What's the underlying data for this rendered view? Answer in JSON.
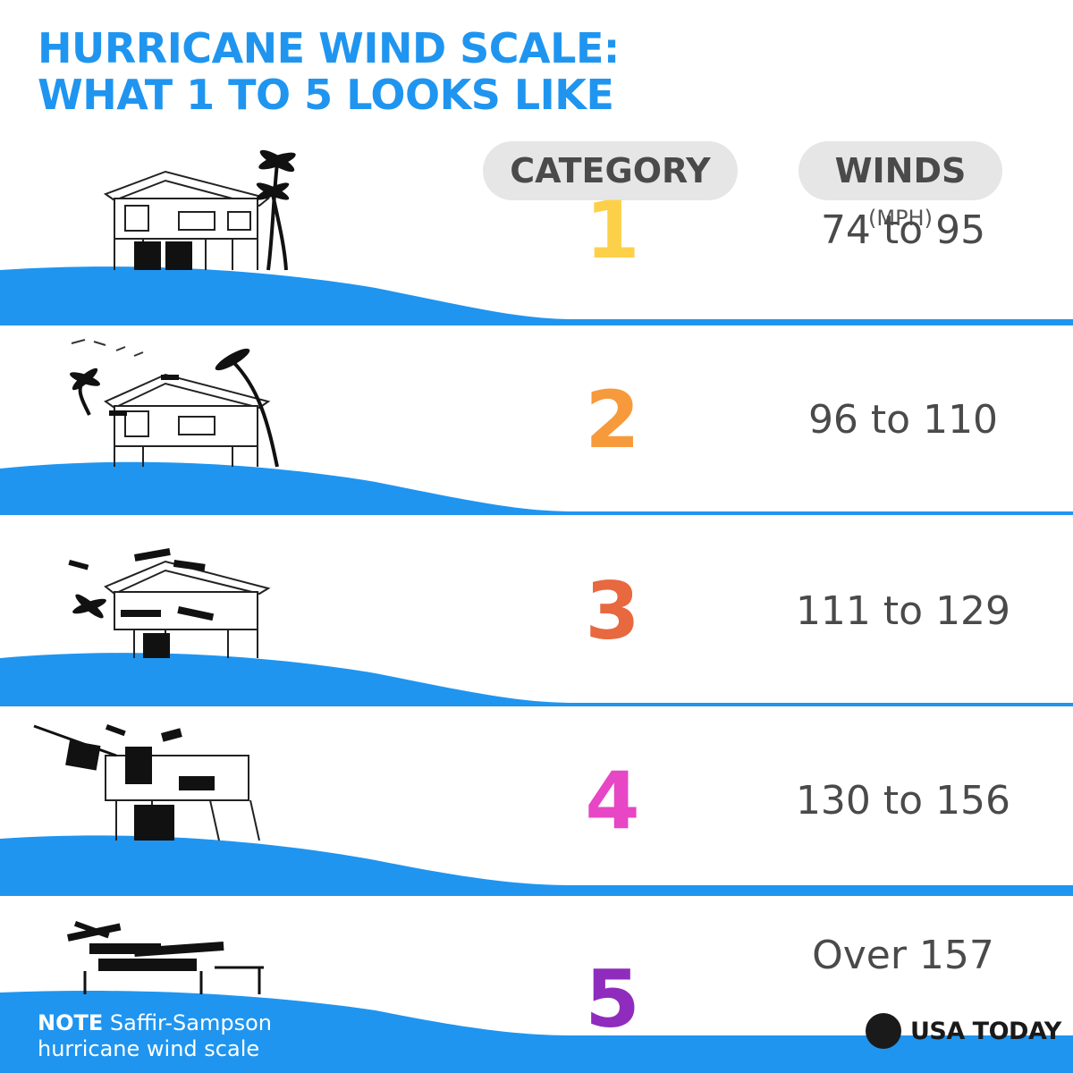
{
  "title": {
    "line1": "HURRICANE WIND SCALE:",
    "line2": "WHAT 1 TO 5 LOOKS LIKE"
  },
  "headers": {
    "category": "CATEGORY",
    "winds": "WINDS",
    "unit": "(MPH)"
  },
  "rows": [
    {
      "category": "1",
      "winds": "74 to 95",
      "color": "#fdd04a",
      "damage": "house-intact-icon"
    },
    {
      "category": "2",
      "winds": "96 to 110",
      "color": "#f79a3c",
      "damage": "house-minor-damage-icon"
    },
    {
      "category": "3",
      "winds": "111 to 129",
      "color": "#e8683f",
      "damage": "house-roof-damage-icon"
    },
    {
      "category": "4",
      "winds": "130 to 156",
      "color": "#e746c4",
      "damage": "house-severe-damage-icon"
    },
    {
      "category": "5",
      "winds": "Over 157",
      "color": "#8f2cbd",
      "damage": "house-destroyed-icon"
    }
  ],
  "note": {
    "label": "NOTE",
    "text_line1": "Saffir-Sampson",
    "text_line2": "hurricane wind scale"
  },
  "logo": "USA TODAY",
  "colors": {
    "water": "#1f95f0",
    "title": "#1f95f0",
    "pill": "#e6e6e6",
    "text": "#4a4a4a"
  }
}
